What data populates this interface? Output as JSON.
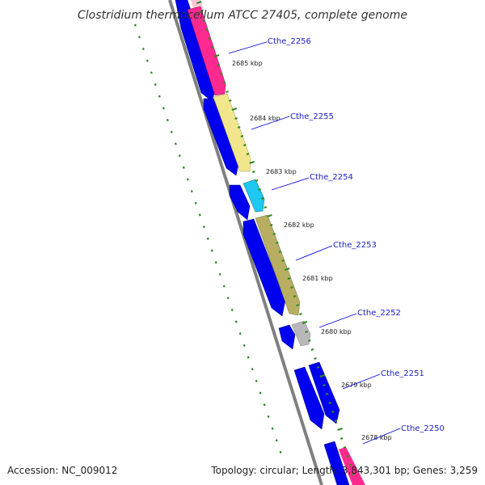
{
  "title": "Clostridium thermocellum ATCC 27405, complete genome",
  "footer": {
    "accession": "Accession: NC_009012",
    "summary": "Topology: circular; Length: 3,843,301 bp; Genes: 3,259"
  },
  "colors": {
    "forward_cds": "#0000ee",
    "backbone": "#808080",
    "tick_ruler": "#2e8b22",
    "dotted_ruler": "#228b22",
    "label_line": "#0000dd"
  },
  "kbp_ticks": [
    "2685 kbp",
    "2684 kbp",
    "2683 kbp",
    "2682 kbp",
    "2681 kbp",
    "2680 kbp",
    "2679 kbp",
    "2678 kbp"
  ],
  "genes": [
    {
      "name": "Cthe_2256",
      "color": "#ff2a8f"
    },
    {
      "name": "Cthe_2255",
      "color": "#f2e68c"
    },
    {
      "name": "Cthe_2254",
      "color": "#1ec8f0"
    },
    {
      "name": "Cthe_2253",
      "color": "#b8ae62"
    },
    {
      "name": "Cthe_2252",
      "color": "#b8b8b8"
    },
    {
      "name": "Cthe_2251",
      "color": "#0000ee"
    },
    {
      "name": "Cthe_2250",
      "color": "#0000ee"
    }
  ]
}
